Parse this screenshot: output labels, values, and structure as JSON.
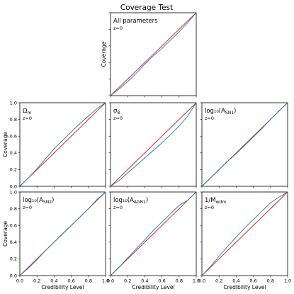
{
  "figure": {
    "title": "Coverage Test"
  },
  "chart_data": [
    {
      "type": "line",
      "panel": "all",
      "label": "All parameters",
      "annotation": "z=0",
      "xlim": [
        0,
        1
      ],
      "ylim": [
        0,
        1
      ],
      "xlabel": "",
      "ylabel": "Coverage",
      "show_xticklabels": false,
      "show_yticklabels": false,
      "series": [
        {
          "role": "reference",
          "color": "#d62728",
          "x": [
            0,
            1
          ],
          "y": [
            0,
            1
          ]
        },
        {
          "role": "coverage",
          "color": "#1f77b4",
          "x": [
            0,
            0.1,
            0.2,
            0.3,
            0.4,
            0.5,
            0.6,
            0.7,
            0.8,
            0.9,
            1.0
          ],
          "y": [
            0,
            0.08,
            0.17,
            0.27,
            0.38,
            0.48,
            0.57,
            0.67,
            0.77,
            0.88,
            1.0
          ]
        }
      ]
    },
    {
      "type": "line",
      "panel": "omega_m",
      "label": "Ω_m",
      "annotation": "z=0",
      "xlim": [
        0,
        1
      ],
      "ylim": [
        0,
        1
      ],
      "xlabel": "",
      "ylabel": "Coverage",
      "show_xticklabels": false,
      "show_yticklabels": true,
      "series": [
        {
          "role": "reference",
          "color": "#d62728",
          "x": [
            0,
            1
          ],
          "y": [
            0,
            1
          ]
        },
        {
          "role": "coverage",
          "color": "#1f77b4",
          "x": [
            0,
            0.1,
            0.2,
            0.3,
            0.4,
            0.5,
            0.6,
            0.7,
            0.8,
            0.9,
            1.0
          ],
          "y": [
            0,
            0.1,
            0.21,
            0.33,
            0.45,
            0.55,
            0.65,
            0.75,
            0.84,
            0.93,
            1.0
          ]
        }
      ]
    },
    {
      "type": "line",
      "panel": "sigma_8",
      "label": "σ_8",
      "annotation": "z=0",
      "xlim": [
        0,
        1
      ],
      "ylim": [
        0,
        1
      ],
      "xlabel": "",
      "ylabel": "",
      "show_xticklabels": false,
      "show_yticklabels": false,
      "series": [
        {
          "role": "reference",
          "color": "#d62728",
          "x": [
            0,
            1
          ],
          "y": [
            0,
            1
          ]
        },
        {
          "role": "coverage",
          "color": "#1f77b4",
          "x": [
            0,
            0.1,
            0.2,
            0.3,
            0.4,
            0.5,
            0.6,
            0.7,
            0.8,
            0.9,
            1.0
          ],
          "y": [
            0,
            0.07,
            0.16,
            0.25,
            0.34,
            0.43,
            0.52,
            0.62,
            0.72,
            0.84,
            1.0
          ]
        }
      ]
    },
    {
      "type": "line",
      "panel": "a_sn1",
      "label": "log₁₀(A_SN1)",
      "annotation": "z=0",
      "xlim": [
        0,
        1
      ],
      "ylim": [
        0,
        1
      ],
      "xlabel": "",
      "ylabel": "",
      "show_xticklabels": false,
      "show_yticklabels": false,
      "series": [
        {
          "role": "reference",
          "color": "#d62728",
          "x": [
            0,
            1
          ],
          "y": [
            0,
            1
          ]
        },
        {
          "role": "coverage",
          "color": "#1f77b4",
          "x": [
            0,
            0.1,
            0.2,
            0.3,
            0.4,
            0.5,
            0.6,
            0.7,
            0.8,
            0.9,
            1.0
          ],
          "y": [
            0,
            0.1,
            0.2,
            0.3,
            0.39,
            0.49,
            0.59,
            0.69,
            0.8,
            0.9,
            1.0
          ]
        }
      ]
    },
    {
      "type": "line",
      "panel": "a_sn2",
      "label": "log₁₀(A_SN2)",
      "annotation": "z=0",
      "xlim": [
        0,
        1
      ],
      "ylim": [
        0,
        1
      ],
      "xlabel": "Credibility Level",
      "ylabel": "Coverage",
      "show_xticklabels": true,
      "show_yticklabels": true,
      "series": [
        {
          "role": "reference",
          "color": "#d62728",
          "x": [
            0,
            1
          ],
          "y": [
            0,
            1
          ]
        },
        {
          "role": "coverage",
          "color": "#1f77b4",
          "x": [
            0,
            0.1,
            0.2,
            0.3,
            0.4,
            0.5,
            0.6,
            0.7,
            0.8,
            0.9,
            1.0
          ],
          "y": [
            0,
            0.09,
            0.19,
            0.3,
            0.4,
            0.5,
            0.6,
            0.7,
            0.8,
            0.91,
            1.0
          ]
        }
      ]
    },
    {
      "type": "line",
      "panel": "a_agn1",
      "label": "log₁₀(A_AGN1)",
      "annotation": "z=0",
      "xlim": [
        0,
        1
      ],
      "ylim": [
        0,
        1
      ],
      "xlabel": "Credibility Level",
      "ylabel": "",
      "show_xticklabels": true,
      "show_yticklabels": false,
      "series": [
        {
          "role": "reference",
          "color": "#d62728",
          "x": [
            0,
            1
          ],
          "y": [
            0,
            1
          ]
        },
        {
          "role": "coverage",
          "color": "#1f77b4",
          "x": [
            0,
            0.1,
            0.2,
            0.3,
            0.4,
            0.5,
            0.6,
            0.7,
            0.8,
            0.9,
            1.0
          ],
          "y": [
            0,
            0.1,
            0.21,
            0.32,
            0.43,
            0.54,
            0.64,
            0.74,
            0.84,
            0.9,
            1.0
          ]
        }
      ]
    },
    {
      "type": "line",
      "panel": "m_wdm",
      "label": "1/M_wdm",
      "annotation": "z=0",
      "xlim": [
        0,
        1
      ],
      "ylim": [
        0,
        1
      ],
      "xlabel": "Credibility Level",
      "ylabel": "",
      "show_xticklabels": true,
      "show_yticklabels": false,
      "series": [
        {
          "role": "reference",
          "color": "#d62728",
          "x": [
            0,
            1
          ],
          "y": [
            0,
            1
          ]
        },
        {
          "role": "coverage",
          "color": "#1f77b4",
          "x": [
            0,
            0.1,
            0.2,
            0.3,
            0.4,
            0.5,
            0.6,
            0.7,
            0.8,
            0.9,
            1.0
          ],
          "y": [
            0,
            0.11,
            0.23,
            0.35,
            0.46,
            0.57,
            0.67,
            0.77,
            0.87,
            0.94,
            1.0
          ]
        }
      ]
    }
  ],
  "ticks": {
    "x": [
      "0.0",
      "0.2",
      "0.4",
      "0.6",
      "0.8",
      "1.0"
    ],
    "y": [
      "0.0",
      "0.2",
      "0.4",
      "0.6",
      "0.8",
      "1.0"
    ]
  }
}
